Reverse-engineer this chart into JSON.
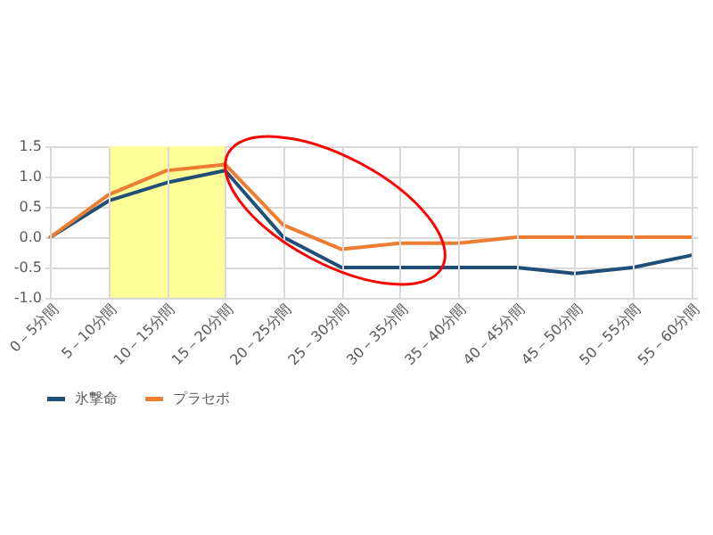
{
  "chart_data": {
    "type": "line",
    "categories": [
      "0－5分間",
      "5－10分間",
      "10－15分間",
      "15－20分間",
      "20－25分間",
      "25－30分間",
      "30－35分間",
      "35－40分間",
      "40－45分間",
      "45－50分間",
      "50－55分間",
      "55－60分間"
    ],
    "series": [
      {
        "name": "氷撃命",
        "color": "#1f4e79",
        "values": [
          0,
          0.6,
          0.9,
          1.1,
          0,
          -0.5,
          -0.5,
          -0.5,
          -0.5,
          -0.6,
          -0.5,
          -0.3
        ]
      },
      {
        "name": "プラセボ",
        "color": "#ed7d31",
        "values": [
          0,
          0.7,
          1.1,
          1.2,
          0.2,
          -0.2,
          -0.1,
          -0.1,
          0,
          0,
          0,
          0
        ]
      }
    ],
    "ylim": [
      -1,
      1.5
    ],
    "yticks": [
      {
        "value": -1,
        "label": "-1.0"
      },
      {
        "value": -0.5,
        "label": "-0.5"
      },
      {
        "value": 0,
        "label": "0.0"
      },
      {
        "value": 0.5,
        "label": "0.5"
      },
      {
        "value": 1,
        "label": "1.0"
      },
      {
        "value": 1.5,
        "label": "1.5"
      }
    ],
    "bands": [
      {
        "axis": "x",
        "from": "5－10分間",
        "to": "15－20分間",
        "color": "#ffff99"
      }
    ],
    "grid": true,
    "legend": "bottom",
    "marker": "none",
    "line_style": "solid"
  }
}
